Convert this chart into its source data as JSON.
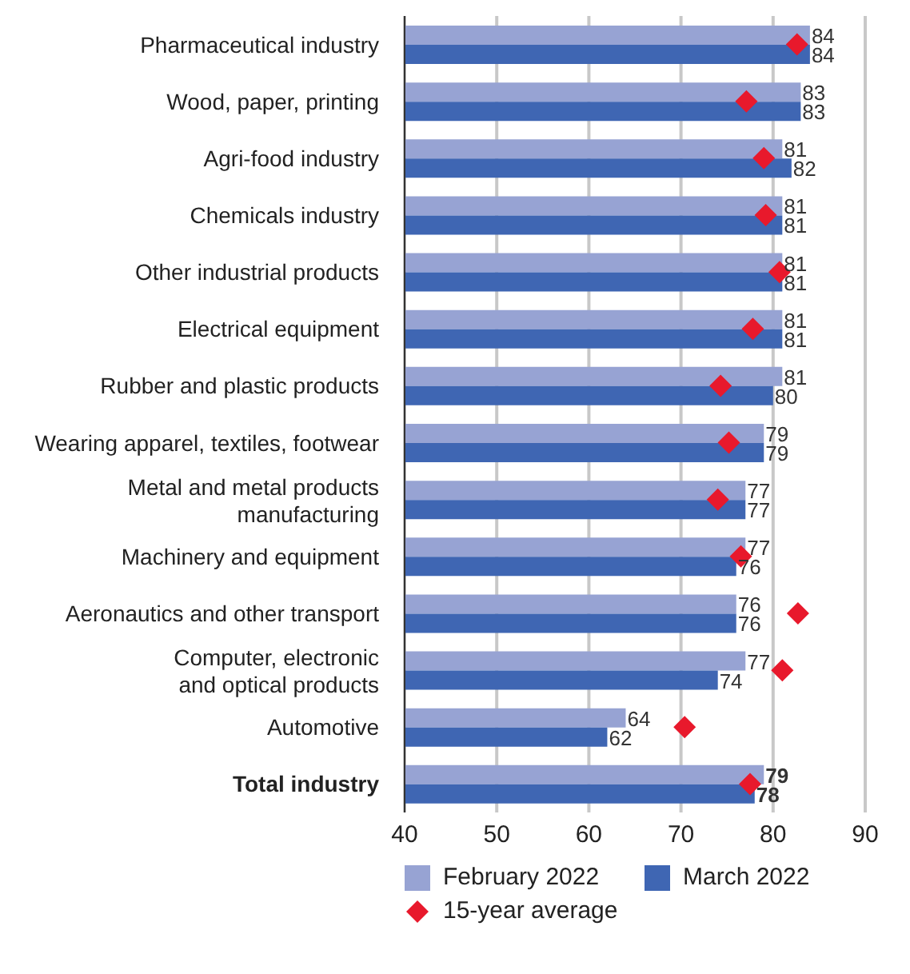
{
  "chart_data": {
    "type": "bar",
    "orientation": "horizontal",
    "categories": [
      "Pharmaceutical industry",
      "Wood, paper, printing",
      "Agri-food industry",
      "Chemicals industry",
      "Other industrial products",
      "Electrical equipment",
      "Rubber and plastic products",
      "Wearing apparel, textiles, footwear",
      "Metal and metal products\nmanufacturing",
      "Machinery and equipment",
      "Aeronautics and other transport",
      "Computer, electronic\nand optical products",
      "Automotive",
      "Total industry"
    ],
    "series": [
      {
        "name": "February 2022",
        "color": "#97a3d3",
        "values": [
          84,
          83,
          81,
          81,
          81,
          81,
          81,
          79,
          77,
          77,
          76,
          77,
          64,
          79
        ],
        "value_labels": [
          "84",
          "83",
          "81",
          "81",
          "81",
          "81",
          "81",
          "79",
          "77",
          "77",
          "76",
          "77",
          "64",
          "79"
        ]
      },
      {
        "name": "March 2022",
        "color": "#3f66b3",
        "values": [
          84,
          83,
          82,
          81,
          81,
          81,
          80,
          79,
          77,
          76,
          76,
          74,
          62,
          78
        ],
        "value_labels": [
          "84",
          "83",
          "82",
          "81",
          "81",
          "81",
          "80",
          "79",
          "77",
          "76",
          "76",
          "74",
          "62",
          "78"
        ]
      },
      {
        "name": "15-year average",
        "type": "scatter",
        "color": "#e8192c",
        "marker": "diamond",
        "values": [
          82.6,
          77.1,
          79.0,
          79.2,
          80.7,
          77.8,
          74.3,
          75.2,
          74.0,
          76.5,
          82.7,
          81.0,
          70.4,
          77.5
        ]
      }
    ],
    "xlim": [
      40,
      90
    ],
    "xticks": [
      40,
      50,
      60,
      70,
      80,
      90
    ],
    "grid": "x",
    "legend": "bottom"
  }
}
